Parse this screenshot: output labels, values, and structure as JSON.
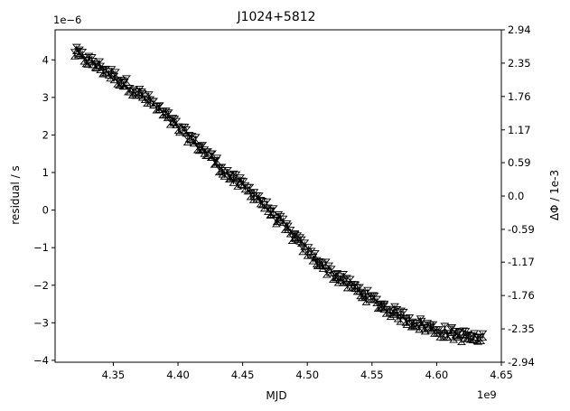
{
  "chart_data": {
    "type": "scatter",
    "title": "J1024+5812",
    "xlabel": "MJD",
    "ylabel": "residual / s",
    "y2label": "ΔΦ / 1e-3",
    "x_offset_label": "1e9",
    "y_offset_label": "1e−6",
    "xlim": [
      4.305,
      4.65
    ],
    "ylim": [
      -4.05,
      4.8
    ],
    "y2lim": [
      -2.94,
      2.94
    ],
    "xticks": [
      4.35,
      4.4,
      4.45,
      4.5,
      4.55,
      4.6,
      4.65
    ],
    "xtick_labels": [
      "4.35",
      "4.40",
      "4.45",
      "4.50",
      "4.55",
      "4.60",
      "4.65"
    ],
    "yticks": [
      -4,
      -3,
      -2,
      -1,
      0,
      1,
      2,
      3,
      4
    ],
    "ytick_labels": [
      "−4",
      "−3",
      "−2",
      "−1",
      "0",
      "1",
      "2",
      "3",
      "4"
    ],
    "y2ticks": [
      -2.94,
      -2.35,
      -1.76,
      -1.17,
      -0.59,
      0.0,
      0.59,
      1.17,
      1.76,
      2.35,
      2.94
    ],
    "y2tick_labels": [
      "-2.94",
      "-2.35",
      "-1.76",
      "-1.17",
      "-0.59",
      "0.0",
      "0.59",
      "1.17",
      "1.76",
      "2.35",
      "2.94"
    ],
    "grid": false,
    "marker": "error-bar with triangle caps",
    "series": [
      {
        "trend_x": [
          4.32,
          4.34,
          4.36,
          4.38,
          4.4,
          4.42,
          4.44,
          4.46,
          4.48,
          4.5,
          4.52,
          4.54,
          4.56,
          4.58,
          4.6,
          4.62,
          4.635
        ],
        "trend_y": [
          4.2,
          3.8,
          3.35,
          2.85,
          2.2,
          1.6,
          0.9,
          0.4,
          -0.35,
          -1.1,
          -1.7,
          -2.15,
          -2.6,
          -2.95,
          -3.2,
          -3.35,
          -3.45
        ],
        "num_points": 220,
        "scatter": 0.12,
        "error": 0.09,
        "x_range": [
          4.32,
          4.635
        ]
      }
    ],
    "colors": {
      "marker": "#000000",
      "axis": "#000000",
      "background": "#ffffff"
    }
  }
}
